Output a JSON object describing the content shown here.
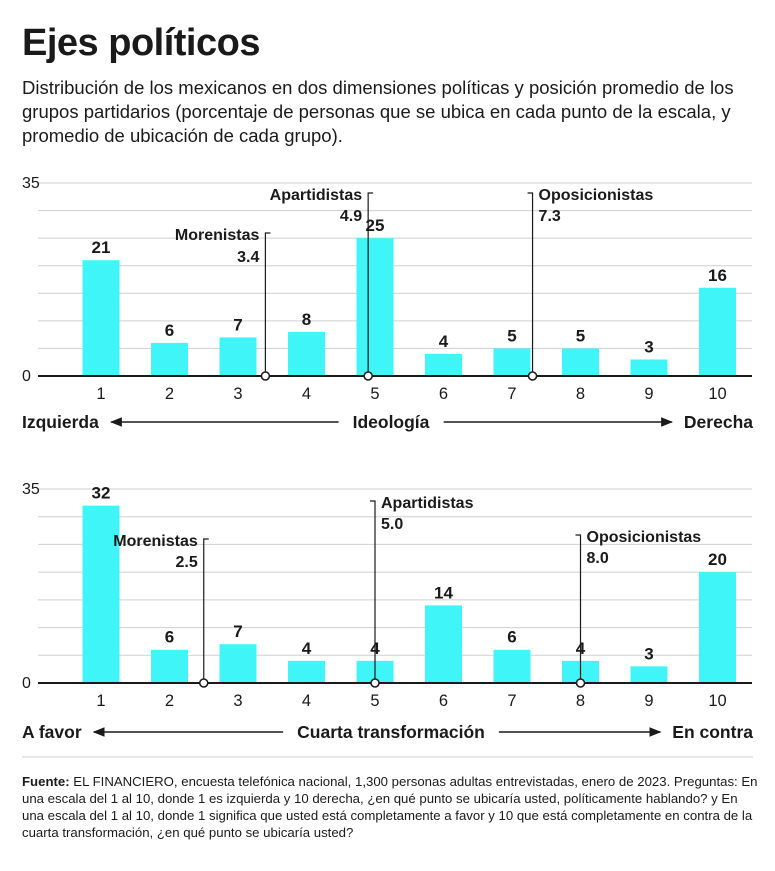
{
  "title": "Ejes políticos",
  "subtitle": "Distribución de los mexicanos en dos dimensiones políticas y posición promedio de los grupos partidarios (porcentaje de personas que se ubica en cada punto de la escala, y promedio de ubicación de cada grupo).",
  "colors": {
    "bar": "#40f5f7",
    "text": "#1a1a1a",
    "grid": "#cfcfcf",
    "axis": "#1a1a1a"
  },
  "chart_data": [
    {
      "type": "bar",
      "categories": [
        "1",
        "2",
        "3",
        "4",
        "5",
        "6",
        "7",
        "8",
        "9",
        "10"
      ],
      "values": [
        21,
        6,
        7,
        8,
        25,
        4,
        5,
        5,
        3,
        16
      ],
      "ylim": [
        0,
        35
      ],
      "yticks": [
        "0",
        "35"
      ],
      "grid": true,
      "scale_left": "Izquierda",
      "scale_center": "Ideología",
      "scale_right": "Derecha",
      "markers": [
        {
          "name": "Morenistas",
          "value_label": "3.4",
          "x": 3.4
        },
        {
          "name": "Apartidistas",
          "value_label": "4.9",
          "x": 4.9
        },
        {
          "name": "Oposicionistas",
          "value_label": "7.3",
          "x": 7.3
        }
      ]
    },
    {
      "type": "bar",
      "categories": [
        "1",
        "2",
        "3",
        "4",
        "5",
        "6",
        "7",
        "8",
        "9",
        "10"
      ],
      "values": [
        32,
        6,
        7,
        4,
        4,
        14,
        6,
        4,
        3,
        20
      ],
      "ylim": [
        0,
        35
      ],
      "yticks": [
        "0",
        "35"
      ],
      "grid": true,
      "scale_left": "A favor",
      "scale_center": "Cuarta transformación",
      "scale_right": "En contra",
      "markers": [
        {
          "name": "Morenistas",
          "value_label": "2.5",
          "x": 2.5
        },
        {
          "name": "Apartidistas",
          "value_label": "5.0",
          "x": 5.0
        },
        {
          "name": "Oposicionistas",
          "value_label": "8.0",
          "x": 8.0
        }
      ]
    }
  ],
  "footer": {
    "source_label": "Fuente:",
    "source_text": " EL FINANCIERO, encuesta telefónica nacional, 1,300 personas adultas entrevistadas, enero de 2023. Preguntas: En una escala del 1 al 10, donde 1 es izquierda y 10 derecha, ¿en qué punto se ubicaría usted, políticamente hablando? y En una escala del 1 al 10, donde 1 significa que usted está completamente a favor y 10 que está completamente en contra de la cuarta transformación, ¿en qué punto se ubicaría usted?"
  }
}
